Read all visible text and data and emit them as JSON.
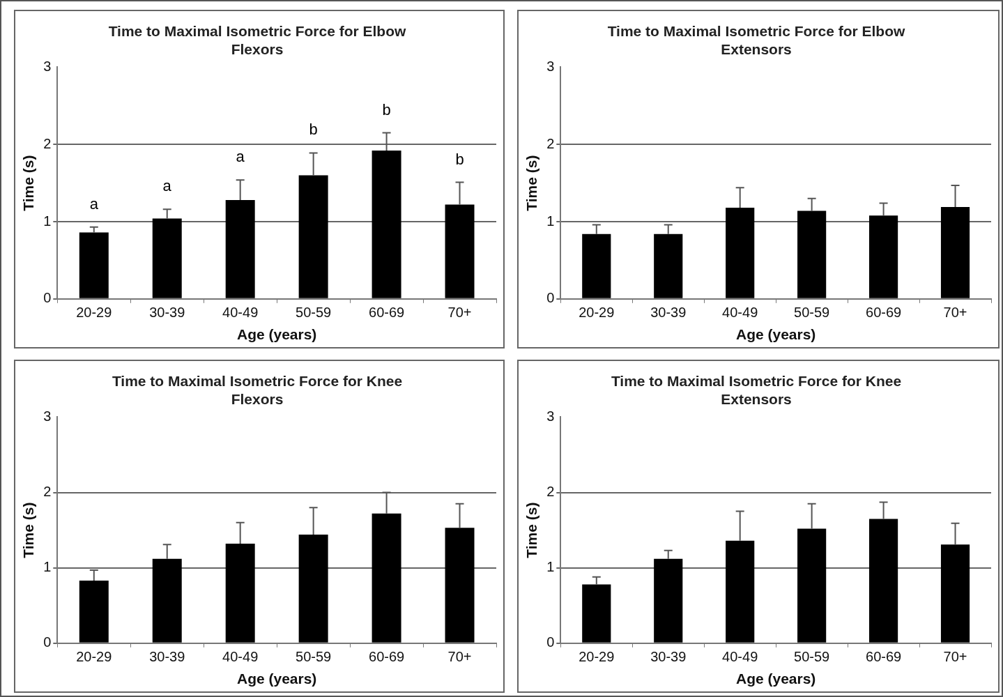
{
  "chart_data": [
    {
      "type": "bar",
      "title": "Time to Maximal Isometric Force for Elbow Flexors",
      "xlabel": "Age (years)",
      "ylabel": "Time (s)",
      "categories": [
        "20-29",
        "30-39",
        "40-49",
        "50-59",
        "60-69",
        "70+"
      ],
      "values": [
        0.86,
        1.04,
        1.28,
        1.6,
        1.92,
        1.22
      ],
      "errors": [
        [
          0.86,
          0.93
        ],
        [
          1.04,
          1.16
        ],
        [
          1.28,
          1.54
        ],
        [
          1.6,
          1.89
        ],
        [
          1.92,
          2.15
        ],
        [
          1.22,
          1.51
        ]
      ],
      "color": "#000000",
      "ylim": [
        0,
        3
      ],
      "yticks": [
        0,
        1,
        2,
        3
      ],
      "grid": "y",
      "annotations": [
        "a",
        "a",
        "a",
        "b",
        "b",
        "b"
      ]
    },
    {
      "type": "bar",
      "title": "Time to Maximal Isometric Force for Elbow Extensors",
      "xlabel": "Age (years)",
      "ylabel": "Time (s)",
      "categories": [
        "20-29",
        "30-39",
        "40-49",
        "50-59",
        "60-69",
        "70+"
      ],
      "values": [
        0.84,
        0.84,
        1.18,
        1.14,
        1.08,
        1.19
      ],
      "errors": [
        [
          0.84,
          0.96
        ],
        [
          0.84,
          0.96
        ],
        [
          1.18,
          1.44
        ],
        [
          1.14,
          1.3
        ],
        [
          1.08,
          1.24
        ],
        [
          1.19,
          1.47
        ]
      ],
      "color": "#000000",
      "ylim": [
        0,
        3
      ],
      "yticks": [
        0,
        1,
        2,
        3
      ],
      "grid": "y"
    },
    {
      "type": "bar",
      "title": "Time to Maximal Isometric Force for Knee Flexors",
      "xlabel": "Age (years)",
      "ylabel": "Time (s)",
      "categories": [
        "20-29",
        "30-39",
        "40-49",
        "50-59",
        "60-69",
        "70+"
      ],
      "values": [
        0.83,
        1.12,
        1.32,
        1.44,
        1.72,
        1.53
      ],
      "errors": [
        [
          0.83,
          0.97
        ],
        [
          1.12,
          1.31
        ],
        [
          1.32,
          1.6
        ],
        [
          1.44,
          1.8
        ],
        [
          1.72,
          2.0
        ],
        [
          1.53,
          1.85
        ]
      ],
      "color": "#000000",
      "ylim": [
        0,
        3
      ],
      "yticks": [
        0,
        1,
        2,
        3
      ],
      "grid": "y"
    },
    {
      "type": "bar",
      "title": "Time to Maximal Isometric Force for Knee Extensors",
      "xlabel": "Age (years)",
      "ylabel": "Time (s)",
      "categories": [
        "20-29",
        "30-39",
        "40-49",
        "50-59",
        "60-69",
        "70+"
      ],
      "values": [
        0.78,
        1.12,
        1.36,
        1.52,
        1.65,
        1.31
      ],
      "errors": [
        [
          0.78,
          0.88
        ],
        [
          1.12,
          1.23
        ],
        [
          1.36,
          1.75
        ],
        [
          1.52,
          1.85
        ],
        [
          1.65,
          1.87
        ],
        [
          1.31,
          1.59
        ]
      ],
      "color": "#000000",
      "ylim": [
        0,
        3
      ],
      "yticks": [
        0,
        1,
        2,
        3
      ],
      "grid": "y"
    }
  ]
}
